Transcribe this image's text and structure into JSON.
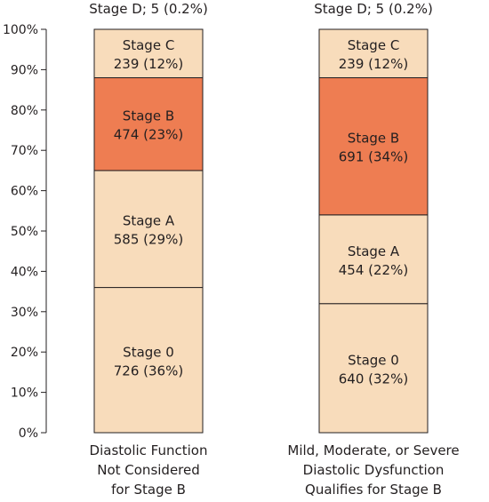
{
  "chart_data": {
    "type": "bar",
    "stacked": true,
    "ylim": [
      0,
      100
    ],
    "yticks": [
      "0%",
      "10%",
      "20%",
      "30%",
      "40%",
      "50%",
      "60%",
      "70%",
      "80%",
      "90%",
      "100%"
    ],
    "categories": [
      {
        "label_lines": [
          "Diastolic Function",
          "Not Considered",
          "for Stage B"
        ],
        "top_label": "Stage D; 5 (0.2%)",
        "segments": [
          {
            "name": "Stage 0",
            "value_text": "726 (36%)",
            "percent": 36
          },
          {
            "name": "Stage A",
            "value_text": "585 (29%)",
            "percent": 29
          },
          {
            "name": "Stage B",
            "value_text": "474 (23%)",
            "percent": 23
          },
          {
            "name": "Stage C",
            "value_text": "239 (12%)",
            "percent": 12
          }
        ]
      },
      {
        "label_lines": [
          "Mild, Moderate, or Severe",
          "Diastolic Dysfunction",
          "Qualifies for Stage B"
        ],
        "top_label": "Stage D; 5 (0.2%)",
        "segments": [
          {
            "name": "Stage 0",
            "value_text": "640 (32%)",
            "percent": 32
          },
          {
            "name": "Stage A",
            "value_text": "454 (22%)",
            "percent": 22
          },
          {
            "name": "Stage B",
            "value_text": "691 (34%)",
            "percent": 34
          },
          {
            "name": "Stage C",
            "value_text": "239 (12%)",
            "percent": 12
          }
        ]
      }
    ],
    "colors": {
      "light": "#f8dcbb",
      "highlight": "#ee7d52",
      "outline": "#231f20"
    },
    "highlight_segment": "Stage B"
  }
}
